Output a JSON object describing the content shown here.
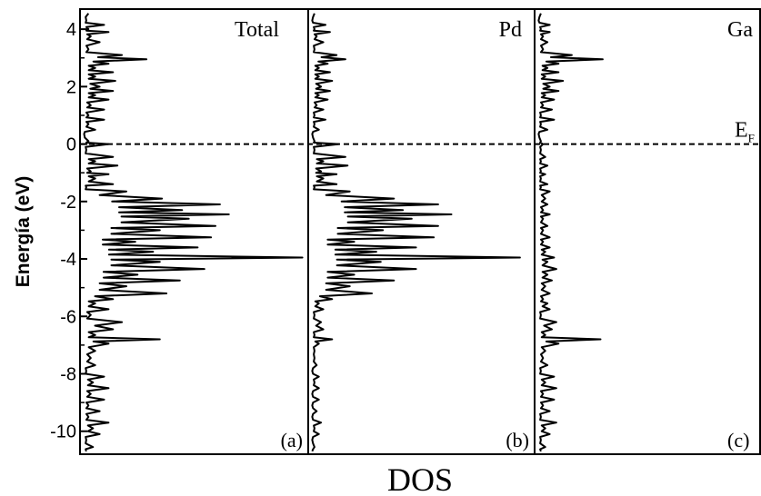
{
  "chart_data": {
    "type": "line",
    "ylabel": "Energía (eV)",
    "xlabel": "DOS",
    "yticks": [
      "4",
      "2",
      "0",
      "-2",
      "-4",
      "-6",
      "-8",
      "-10"
    ],
    "ylim": [
      -10.8,
      4.7
    ],
    "fermi_level": 0,
    "fermi_label": "E",
    "fermi_sub": "F",
    "panels": [
      {
        "label": "Total",
        "tag": "(a)",
        "xlim": [
          0,
          1
        ],
        "y": [
          4.55,
          4.3,
          4.15,
          4.0,
          3.9,
          3.75,
          3.55,
          3.3,
          3.1,
          2.95,
          2.8,
          2.65,
          2.5,
          2.35,
          2.2,
          2.0,
          1.85,
          1.7,
          1.55,
          1.35,
          1.2,
          1.0,
          0.85,
          0.7,
          0.5,
          0.35,
          0.1,
          0.0,
          -0.2,
          -0.45,
          -0.6,
          -0.75,
          -0.95,
          -1.05,
          -1.2,
          -1.4,
          -1.5,
          -1.65,
          -1.9,
          -2.1,
          -2.3,
          -2.45,
          -2.6,
          -2.85,
          -3.0,
          -3.25,
          -3.4,
          -3.6,
          -3.75,
          -3.95,
          -4.1,
          -4.35,
          -4.55,
          -4.75,
          -4.95,
          -5.2,
          -5.4,
          -5.55,
          -5.75,
          -5.95,
          -6.2,
          -6.45,
          -6.65,
          -6.8,
          -6.95,
          -7.2,
          -7.45,
          -7.7,
          -7.9,
          -8.1,
          -8.3,
          -8.5,
          -8.7,
          -8.9,
          -9.1,
          -9.3,
          -9.5,
          -9.7,
          -9.9,
          -10.1,
          -10.3,
          -10.55,
          -10.7
        ],
        "dos": [
          0.03,
          0.02,
          0.1,
          0.03,
          0.12,
          0.04,
          0.08,
          0.03,
          0.18,
          0.29,
          0.12,
          0.06,
          0.14,
          0.06,
          0.15,
          0.08,
          0.14,
          0.06,
          0.12,
          0.04,
          0.1,
          0.03,
          0.1,
          0.03,
          0.06,
          0.01,
          0.03,
          0.12,
          0.02,
          0.14,
          0.06,
          0.16,
          0.04,
          0.12,
          0.06,
          0.14,
          0.02,
          0.2,
          0.36,
          0.62,
          0.45,
          0.66,
          0.48,
          0.6,
          0.35,
          0.58,
          0.24,
          0.52,
          0.32,
          0.99,
          0.35,
          0.55,
          0.25,
          0.44,
          0.2,
          0.38,
          0.14,
          0.06,
          0.12,
          0.04,
          0.18,
          0.14,
          0.06,
          0.35,
          0.12,
          0.06,
          0.04,
          0.06,
          0.02,
          0.1,
          0.05,
          0.12,
          0.04,
          0.1,
          0.03,
          0.08,
          0.03,
          0.12,
          0.05,
          0.08,
          0.02,
          0.05,
          0.02
        ]
      },
      {
        "label": "Pd",
        "tag": "(b)",
        "xlim": [
          0,
          1
        ],
        "y": [
          4.55,
          4.3,
          4.15,
          4.0,
          3.9,
          3.75,
          3.55,
          3.3,
          3.1,
          2.95,
          2.8,
          2.65,
          2.5,
          2.35,
          2.2,
          2.0,
          1.85,
          1.7,
          1.55,
          1.35,
          1.2,
          1.0,
          0.85,
          0.7,
          0.5,
          0.35,
          0.1,
          0.0,
          -0.2,
          -0.45,
          -0.6,
          -0.75,
          -0.95,
          -1.05,
          -1.2,
          -1.4,
          -1.5,
          -1.65,
          -1.9,
          -2.1,
          -2.3,
          -2.45,
          -2.6,
          -2.85,
          -3.0,
          -3.25,
          -3.4,
          -3.6,
          -3.75,
          -3.95,
          -4.1,
          -4.35,
          -4.55,
          -4.75,
          -4.95,
          -5.2,
          -5.4,
          -5.55,
          -5.75,
          -5.95,
          -6.2,
          -6.45,
          -6.65,
          -6.8,
          -6.95,
          -7.2,
          -7.45,
          -7.7,
          -7.9,
          -8.1,
          -8.3,
          -8.5,
          -8.7,
          -8.9,
          -9.1,
          -9.3,
          -9.5,
          -9.7,
          -9.9,
          -10.1,
          -10.3,
          -10.55,
          -10.7
        ],
        "dos": [
          0.02,
          0.01,
          0.07,
          0.02,
          0.09,
          0.03,
          0.06,
          0.02,
          0.12,
          0.16,
          0.08,
          0.04,
          0.09,
          0.04,
          0.1,
          0.05,
          0.09,
          0.04,
          0.08,
          0.03,
          0.06,
          0.02,
          0.07,
          0.02,
          0.04,
          0.01,
          0.02,
          0.13,
          0.02,
          0.16,
          0.06,
          0.17,
          0.05,
          0.12,
          0.06,
          0.12,
          0.02,
          0.18,
          0.38,
          0.58,
          0.42,
          0.64,
          0.46,
          0.58,
          0.33,
          0.56,
          0.2,
          0.48,
          0.3,
          0.95,
          0.32,
          0.48,
          0.2,
          0.38,
          0.18,
          0.28,
          0.1,
          0.04,
          0.06,
          0.02,
          0.05,
          0.06,
          0.02,
          0.1,
          0.04,
          0.02,
          0.02,
          0.03,
          0.01,
          0.04,
          0.02,
          0.04,
          0.01,
          0.04,
          0.01,
          0.03,
          0.01,
          0.05,
          0.02,
          0.04,
          0.01,
          0.02,
          0.01
        ]
      },
      {
        "label": "Ga",
        "tag": "(c)",
        "xlim": [
          0,
          1
        ],
        "y": [
          4.55,
          4.3,
          4.15,
          4.0,
          3.9,
          3.75,
          3.55,
          3.3,
          3.1,
          2.95,
          2.8,
          2.65,
          2.5,
          2.35,
          2.2,
          2.0,
          1.85,
          1.7,
          1.55,
          1.35,
          1.2,
          1.0,
          0.85,
          0.7,
          0.5,
          0.35,
          0.1,
          0.0,
          -0.2,
          -0.45,
          -0.6,
          -0.75,
          -0.95,
          -1.05,
          -1.2,
          -1.4,
          -1.5,
          -1.65,
          -1.9,
          -2.1,
          -2.3,
          -2.45,
          -2.6,
          -2.85,
          -3.0,
          -3.25,
          -3.4,
          -3.6,
          -3.75,
          -3.95,
          -4.1,
          -4.35,
          -4.55,
          -4.75,
          -4.95,
          -5.2,
          -5.4,
          -5.55,
          -5.75,
          -5.95,
          -6.2,
          -6.45,
          -6.65,
          -6.8,
          -6.95,
          -7.2,
          -7.45,
          -7.7,
          -7.9,
          -8.1,
          -8.3,
          -8.5,
          -8.7,
          -8.9,
          -9.1,
          -9.3,
          -9.5,
          -9.7,
          -9.9,
          -10.1,
          -10.3,
          -10.55,
          -10.7
        ],
        "dos": [
          0.02,
          0.01,
          0.06,
          0.02,
          0.06,
          0.03,
          0.05,
          0.03,
          0.16,
          0.3,
          0.1,
          0.05,
          0.1,
          0.04,
          0.12,
          0.06,
          0.1,
          0.04,
          0.08,
          0.03,
          0.07,
          0.02,
          0.08,
          0.02,
          0.05,
          0.01,
          0.02,
          0.03,
          0.02,
          0.04,
          0.02,
          0.05,
          0.02,
          0.04,
          0.02,
          0.05,
          0.02,
          0.06,
          0.04,
          0.05,
          0.03,
          0.06,
          0.03,
          0.05,
          0.03,
          0.06,
          0.03,
          0.06,
          0.04,
          0.08,
          0.05,
          0.09,
          0.05,
          0.07,
          0.04,
          0.06,
          0.03,
          0.05,
          0.06,
          0.02,
          0.09,
          0.07,
          0.04,
          0.29,
          0.1,
          0.04,
          0.03,
          0.05,
          0.02,
          0.08,
          0.04,
          0.09,
          0.03,
          0.08,
          0.03,
          0.06,
          0.02,
          0.09,
          0.04,
          0.06,
          0.02,
          0.04,
          0.02
        ]
      }
    ]
  }
}
